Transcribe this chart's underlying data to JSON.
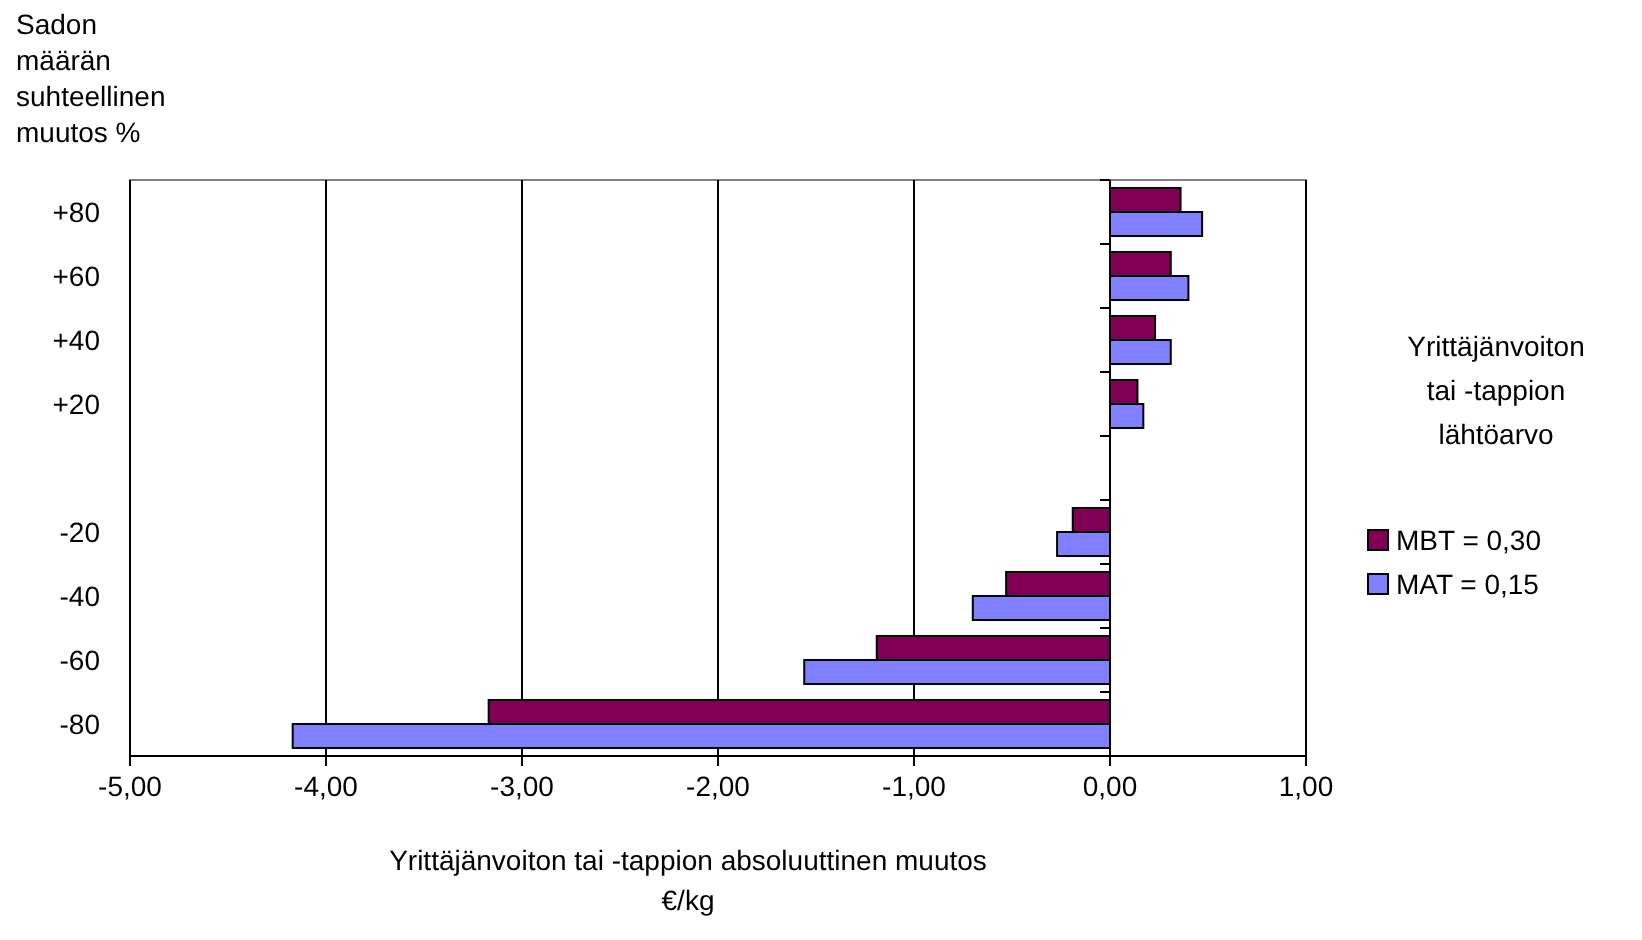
{
  "chart_data": {
    "type": "bar",
    "orientation": "horizontal",
    "ylabel": "Sadon määrän suhteellinen muutos %",
    "xlabel": "Yrittäjänvoiton tai -tappion absoluuttinen muutos €/kg",
    "legend_title": "Yrittäjänvoiton tai -tappion lähtöarvo",
    "categories": [
      "+80",
      "+60",
      "+40",
      "+20",
      null,
      "-20",
      "-40",
      "-60",
      "-80"
    ],
    "series": [
      {
        "name": "MBT = 0,30",
        "color": "#800055",
        "values": [
          0.36,
          0.31,
          0.23,
          0.14,
          null,
          -0.19,
          -0.53,
          -1.19,
          -3.17
        ]
      },
      {
        "name": "MAT = 0,15",
        "color": "#8080ff",
        "values": [
          0.47,
          0.4,
          0.31,
          0.17,
          null,
          -0.27,
          -0.7,
          -1.56,
          -4.17
        ]
      }
    ],
    "xlim": [
      -5,
      1
    ],
    "xticks": [
      {
        "value": -5,
        "label": "-5,00"
      },
      {
        "value": -4,
        "label": "-4,00"
      },
      {
        "value": -3,
        "label": "-3,00"
      },
      {
        "value": -2,
        "label": "-2,00"
      },
      {
        "value": -1,
        "label": "-1,00"
      },
      {
        "value": 0,
        "label": "0,00"
      },
      {
        "value": 1,
        "label": "1,00"
      }
    ],
    "grid": "x",
    "legend": "right"
  }
}
